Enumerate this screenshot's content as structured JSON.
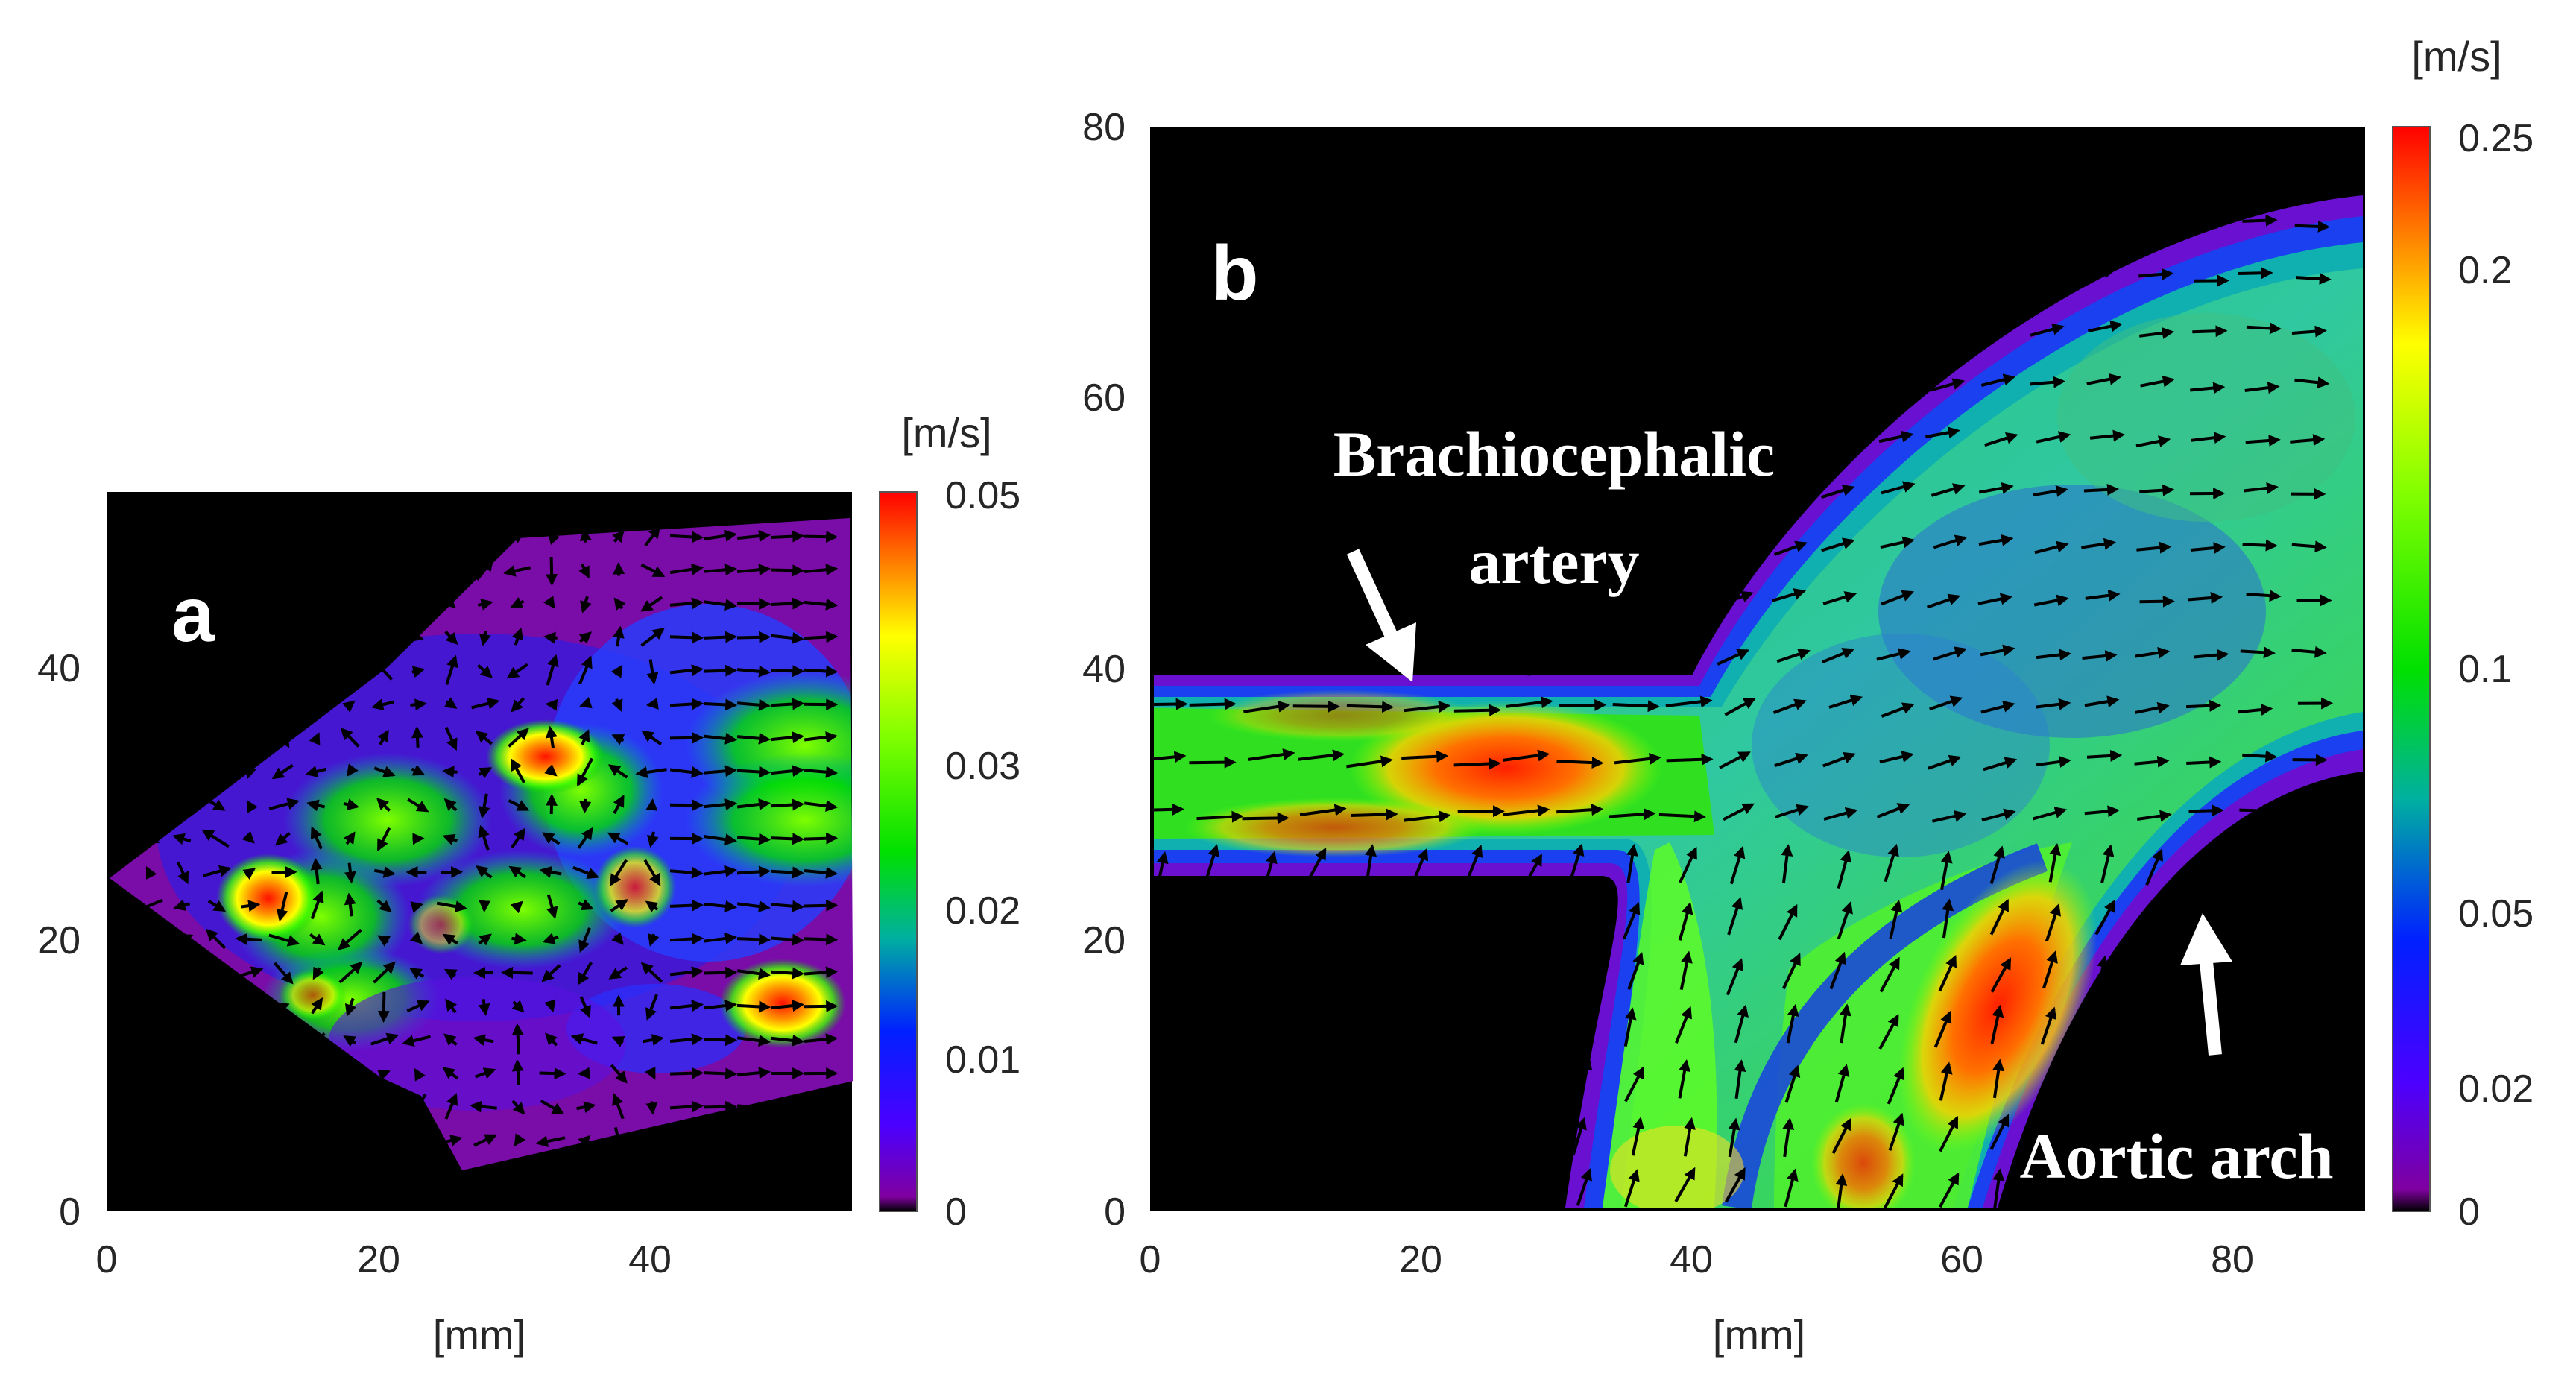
{
  "chart_data": [
    {
      "type": "heatmap",
      "panel_label": "a",
      "xlabel": "[mm]",
      "ylabel": "",
      "xlim": [
        0,
        55
      ],
      "ylim": [
        0,
        53
      ],
      "x_ticks": [
        "0",
        "20",
        "40"
      ],
      "y_ticks": [
        "0",
        "20",
        "40"
      ],
      "colorbar": {
        "label": "[m/s]",
        "range": [
          0,
          0.05
        ],
        "ticks": [
          "0",
          "0.01",
          "0.02",
          "0.03",
          "0.05"
        ]
      },
      "high_velocity_regions": [
        {
          "x": 12,
          "y": 23,
          "value": 0.045
        },
        {
          "x": 32,
          "y": 34,
          "value": 0.044
        },
        {
          "x": 50,
          "y": 15,
          "value": 0.046
        },
        {
          "x": 39,
          "y": 24,
          "value": 0.033
        }
      ],
      "field": "velocity magnitude with vector arrows"
    },
    {
      "type": "heatmap",
      "panel_label": "b",
      "xlabel": "[mm]",
      "ylabel": "",
      "xlim": [
        0,
        90
      ],
      "ylim": [
        0,
        80
      ],
      "x_ticks": [
        "0",
        "20",
        "40",
        "60",
        "80"
      ],
      "y_ticks": [
        "0",
        "20",
        "40",
        "60",
        "80"
      ],
      "colorbar": {
        "label": "[m/s]",
        "range": [
          0,
          0.25
        ],
        "ticks": [
          "0",
          "0.02",
          "0.05",
          "0.1",
          "0.2",
          "0.25"
        ]
      },
      "annotations": [
        {
          "text_line1": "Brachiocephalic",
          "text_line2": "artery",
          "arrow_target": [
            19,
            40
          ]
        },
        {
          "text": "Aortic arch",
          "arrow_target": [
            77,
            22
          ]
        }
      ],
      "high_velocity_regions": [
        {
          "x": 25,
          "y": 34,
          "value": 0.22
        },
        {
          "x": 62,
          "y": 16,
          "value": 0.21
        }
      ],
      "field": "velocity magnitude with vector arrows"
    }
  ]
}
